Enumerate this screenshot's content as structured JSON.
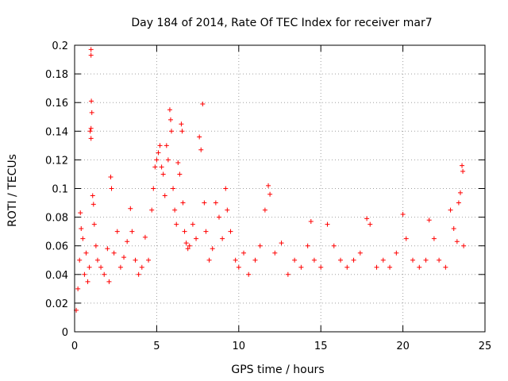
{
  "chart_data": {
    "type": "scatter",
    "title": "Day 184 of 2014, Rate Of TEC Index for receiver mar7",
    "xlabel": "GPS time / hours",
    "ylabel": "ROTI / TECUs",
    "xlim": [
      0,
      25
    ],
    "ylim": [
      0,
      0.2
    ],
    "xticks": [
      0,
      5,
      10,
      15,
      20,
      25
    ],
    "xtick_labels": [
      "0",
      "5",
      "10",
      "15",
      "20",
      "25"
    ],
    "yticks": [
      0,
      0.02,
      0.04,
      0.06,
      0.08,
      0.1,
      0.12,
      0.14,
      0.16,
      0.18,
      0.2
    ],
    "ytick_labels": [
      "0",
      "0.02",
      "0.04",
      "0.06",
      "0.08",
      "0.1",
      "0.12",
      "0.14",
      "0.16",
      "0.18",
      "0.2"
    ],
    "grid": true,
    "marker": "+",
    "series_color": "#ff0000",
    "series": [
      {
        "name": "ROTI",
        "points": [
          [
            0.1,
            0.015
          ],
          [
            0.2,
            0.03
          ],
          [
            0.3,
            0.05
          ],
          [
            0.35,
            0.083
          ],
          [
            0.4,
            0.072
          ],
          [
            0.5,
            0.065
          ],
          [
            0.6,
            0.04
          ],
          [
            0.7,
            0.055
          ],
          [
            0.8,
            0.035
          ],
          [
            0.9,
            0.045
          ],
          [
            0.95,
            0.14
          ],
          [
            1.0,
            0.197
          ],
          [
            1.0,
            0.193
          ],
          [
            1.02,
            0.161
          ],
          [
            1.05,
            0.153
          ],
          [
            1.0,
            0.142
          ],
          [
            1.0,
            0.135
          ],
          [
            1.1,
            0.095
          ],
          [
            1.15,
            0.089
          ],
          [
            1.2,
            0.075
          ],
          [
            1.3,
            0.06
          ],
          [
            1.4,
            0.05
          ],
          [
            1.6,
            0.045
          ],
          [
            1.8,
            0.04
          ],
          [
            2.0,
            0.058
          ],
          [
            2.1,
            0.035
          ],
          [
            2.2,
            0.108
          ],
          [
            2.25,
            0.1
          ],
          [
            2.4,
            0.055
          ],
          [
            2.6,
            0.07
          ],
          [
            2.8,
            0.045
          ],
          [
            3.0,
            0.052
          ],
          [
            3.2,
            0.063
          ],
          [
            3.4,
            0.086
          ],
          [
            3.5,
            0.07
          ],
          [
            3.7,
            0.05
          ],
          [
            3.9,
            0.04
          ],
          [
            4.1,
            0.045
          ],
          [
            4.3,
            0.066
          ],
          [
            4.5,
            0.05
          ],
          [
            4.7,
            0.085
          ],
          [
            4.8,
            0.1
          ],
          [
            4.9,
            0.115
          ],
          [
            5.0,
            0.12
          ],
          [
            5.1,
            0.125
          ],
          [
            5.2,
            0.13
          ],
          [
            5.3,
            0.115
          ],
          [
            5.4,
            0.11
          ],
          [
            5.5,
            0.095
          ],
          [
            5.6,
            0.13
          ],
          [
            5.7,
            0.12
          ],
          [
            5.8,
            0.155
          ],
          [
            5.85,
            0.148
          ],
          [
            5.9,
            0.14
          ],
          [
            6.0,
            0.1
          ],
          [
            6.1,
            0.085
          ],
          [
            6.2,
            0.075
          ],
          [
            6.3,
            0.118
          ],
          [
            6.4,
            0.11
          ],
          [
            6.5,
            0.145
          ],
          [
            6.55,
            0.14
          ],
          [
            6.6,
            0.09
          ],
          [
            6.7,
            0.07
          ],
          [
            6.8,
            0.062
          ],
          [
            6.9,
            0.058
          ],
          [
            7.0,
            0.06
          ],
          [
            7.2,
            0.075
          ],
          [
            7.4,
            0.065
          ],
          [
            7.6,
            0.136
          ],
          [
            7.7,
            0.127
          ],
          [
            7.8,
            0.159
          ],
          [
            7.9,
            0.09
          ],
          [
            8.0,
            0.07
          ],
          [
            8.2,
            0.05
          ],
          [
            8.4,
            0.058
          ],
          [
            8.6,
            0.09
          ],
          [
            8.8,
            0.08
          ],
          [
            9.0,
            0.065
          ],
          [
            9.2,
            0.1
          ],
          [
            9.3,
            0.085
          ],
          [
            9.5,
            0.07
          ],
          [
            9.8,
            0.05
          ],
          [
            10.0,
            0.045
          ],
          [
            10.3,
            0.055
          ],
          [
            10.6,
            0.04
          ],
          [
            11.0,
            0.05
          ],
          [
            11.3,
            0.06
          ],
          [
            11.6,
            0.085
          ],
          [
            11.8,
            0.102
          ],
          [
            11.9,
            0.096
          ],
          [
            12.2,
            0.055
          ],
          [
            12.6,
            0.062
          ],
          [
            13.0,
            0.04
          ],
          [
            13.4,
            0.05
          ],
          [
            13.8,
            0.045
          ],
          [
            14.2,
            0.06
          ],
          [
            14.4,
            0.077
          ],
          [
            14.6,
            0.05
          ],
          [
            15.0,
            0.045
          ],
          [
            15.4,
            0.075
          ],
          [
            15.8,
            0.06
          ],
          [
            16.2,
            0.05
          ],
          [
            16.6,
            0.045
          ],
          [
            17.0,
            0.05
          ],
          [
            17.4,
            0.055
          ],
          [
            17.8,
            0.079
          ],
          [
            18.0,
            0.075
          ],
          [
            18.4,
            0.045
          ],
          [
            18.8,
            0.05
          ],
          [
            19.2,
            0.045
          ],
          [
            19.6,
            0.055
          ],
          [
            20.0,
            0.082
          ],
          [
            20.2,
            0.065
          ],
          [
            20.6,
            0.05
          ],
          [
            21.0,
            0.045
          ],
          [
            21.4,
            0.05
          ],
          [
            21.6,
            0.078
          ],
          [
            21.9,
            0.065
          ],
          [
            22.2,
            0.05
          ],
          [
            22.6,
            0.045
          ],
          [
            22.9,
            0.085
          ],
          [
            23.1,
            0.072
          ],
          [
            23.3,
            0.063
          ],
          [
            23.4,
            0.09
          ],
          [
            23.5,
            0.097
          ],
          [
            23.6,
            0.116
          ],
          [
            23.65,
            0.112
          ],
          [
            23.7,
            0.06
          ]
        ]
      }
    ]
  }
}
